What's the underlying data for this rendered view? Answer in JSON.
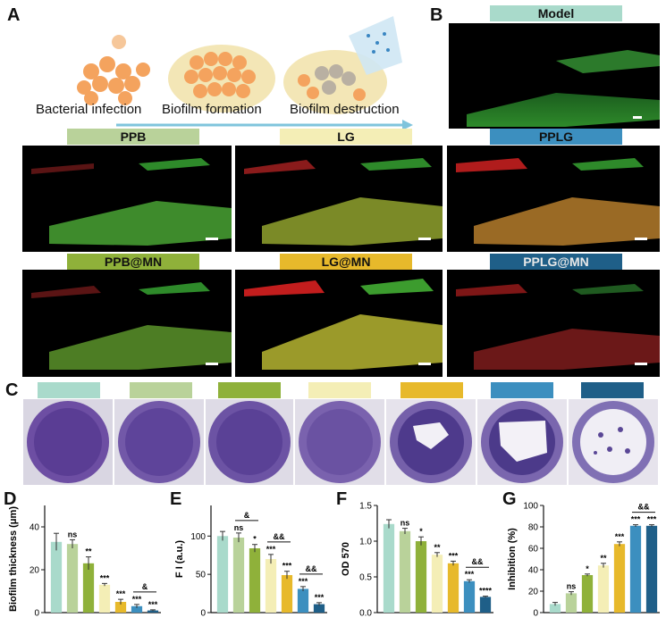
{
  "panels": {
    "A": "A",
    "B": "B",
    "C": "C",
    "D": "D",
    "E": "E",
    "F": "F",
    "G": "G"
  },
  "schematic": {
    "steps": [
      "Bacterial infection",
      "Biofilm formation",
      "Biofilm destruction"
    ]
  },
  "confocal_labels": {
    "model": "Model",
    "ppb": "PPB",
    "lg": "LG",
    "pplg": "PPLG",
    "ppb_mn": "PPB@MN",
    "lg_mn": "LG@MN",
    "pplg_mn": "PPLG@MN"
  },
  "group_colors": [
    "#a9dacb",
    "#b9d29a",
    "#8fb13a",
    "#f4eeb6",
    "#e7b92b",
    "#3c8fbf",
    "#1f5f88"
  ],
  "chart_data": [
    {
      "type": "bar",
      "panel": "D",
      "ylabel": "Biofilm thickness (μm)",
      "ylim": [
        0,
        50
      ],
      "yticks": [
        0,
        20,
        40
      ],
      "values": [
        33,
        32,
        23,
        13,
        5,
        3,
        1
      ],
      "errors": [
        4,
        2,
        3,
        0.6,
        1.2,
        0.8,
        0.3
      ],
      "significance": [
        "",
        "ns",
        "**",
        "***",
        "***",
        "***",
        "***"
      ],
      "brackets": [
        {
          "from": 5,
          "to": 6,
          "label": "&"
        }
      ]
    },
    {
      "type": "bar",
      "panel": "E",
      "ylabel": "F I (a.u.)",
      "ylim": [
        0,
        140
      ],
      "yticks": [
        0,
        50,
        100
      ],
      "values": [
        100,
        98,
        84,
        70,
        49,
        31,
        11
      ],
      "errors": [
        6,
        6,
        5,
        6,
        5,
        3,
        2
      ],
      "significance": [
        "",
        "ns",
        "*",
        "***",
        "***",
        "***",
        "***"
      ],
      "brackets": [
        {
          "from": 1,
          "to": 2,
          "label": "&"
        },
        {
          "from": 3,
          "to": 4,
          "label": "&&"
        },
        {
          "from": 5,
          "to": 6,
          "label": "&&"
        }
      ]
    },
    {
      "type": "bar",
      "panel": "F",
      "ylabel": "OD  570",
      "ylim": [
        0,
        1.5
      ],
      "yticks": [
        0.0,
        0.5,
        1.0,
        1.5
      ],
      "values": [
        1.24,
        1.14,
        1.0,
        0.81,
        0.69,
        0.44,
        0.22
      ],
      "errors": [
        0.06,
        0.04,
        0.06,
        0.03,
        0.03,
        0.02,
        0.01
      ],
      "significance": [
        "",
        "ns",
        "*",
        "**",
        "***",
        "***",
        "****"
      ],
      "brackets": [
        {
          "from": 5,
          "to": 6,
          "label": "&&"
        }
      ]
    },
    {
      "type": "bar",
      "panel": "G",
      "ylabel": "Inhibition (%)",
      "ylim": [
        0,
        100
      ],
      "yticks": [
        0,
        20,
        40,
        60,
        80,
        100
      ],
      "values": [
        8,
        18,
        35,
        44,
        64,
        81,
        81
      ],
      "errors": [
        1.5,
        1.5,
        1,
        2,
        2,
        1,
        1
      ],
      "skip_first": true,
      "significance": [
        "",
        "ns",
        "*",
        "**",
        "***",
        "***",
        "***"
      ],
      "brackets": [
        {
          "from": 5,
          "to": 6,
          "label": "&&"
        }
      ]
    }
  ]
}
